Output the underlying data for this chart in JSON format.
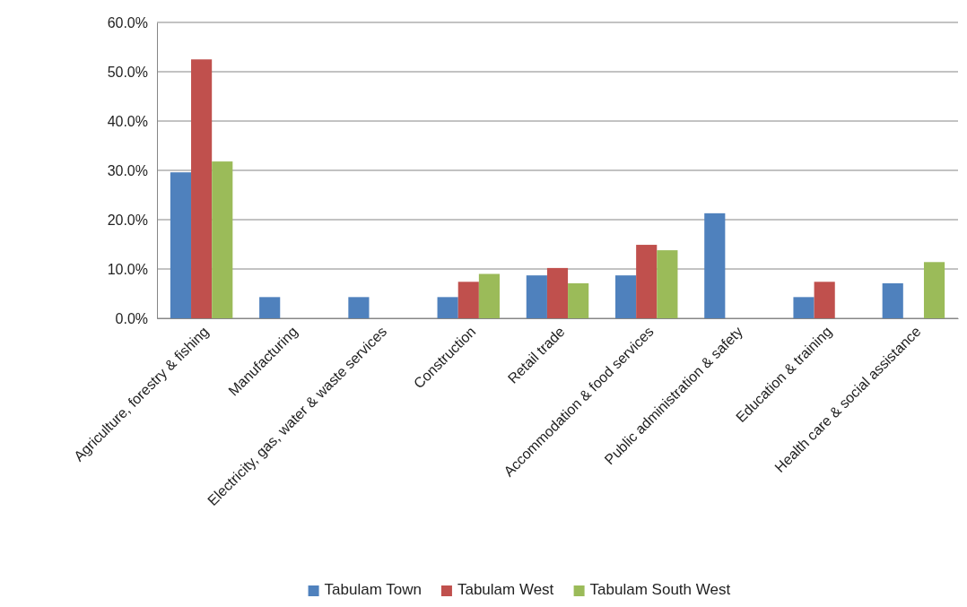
{
  "chart_data": {
    "type": "bar",
    "categories": [
      "Agriculture, forestry & fishing",
      "Manufacturing",
      "Electricity, gas, water & waste services",
      "Construction",
      "Retail trade",
      "Accommodation & food services",
      "Public administration & safety",
      "Education & training",
      "Health care & social assistance"
    ],
    "series": [
      {
        "name": "Tabulam Town",
        "color": "#4f81bd",
        "values": [
          29.6,
          4.3,
          4.3,
          4.3,
          8.7,
          8.7,
          21.3,
          4.3,
          7.1
        ]
      },
      {
        "name": "Tabulam West",
        "color": "#c0504d",
        "values": [
          52.5,
          0,
          0,
          7.4,
          10.2,
          14.9,
          0,
          7.4,
          0
        ]
      },
      {
        "name": "Tabulam South West",
        "color": "#9bbb59",
        "values": [
          31.8,
          0,
          0,
          9.0,
          7.1,
          13.8,
          0,
          0,
          11.4
        ]
      }
    ],
    "ylim": [
      0,
      60
    ],
    "yticks": [
      {
        "value": 0,
        "label": "0.0%"
      },
      {
        "value": 10,
        "label": "10.0%"
      },
      {
        "value": 20,
        "label": "20.0%"
      },
      {
        "value": 30,
        "label": "30.0%"
      },
      {
        "value": 40,
        "label": "40.0%"
      },
      {
        "value": 50,
        "label": "50.0%"
      },
      {
        "value": 60,
        "label": "60.0%"
      }
    ],
    "grid": "y",
    "legend": "bottom"
  }
}
